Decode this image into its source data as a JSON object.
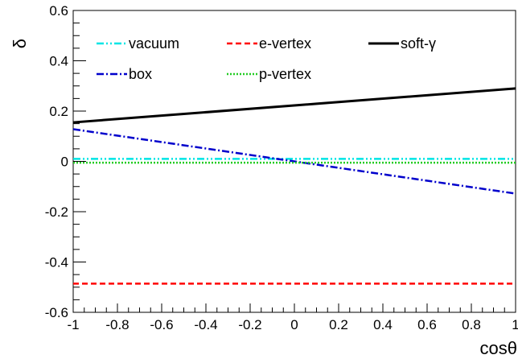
{
  "chart_data": {
    "type": "line",
    "xlabel": "cosθ",
    "ylabel": "δ",
    "xlim": [
      -1,
      1
    ],
    "ylim": [
      -0.6,
      0.6
    ],
    "x_ticks": [
      -1,
      -0.8,
      -0.6,
      -0.4,
      -0.2,
      0,
      0.2,
      0.4,
      0.6,
      0.8,
      1
    ],
    "x_tick_labels": [
      "-1",
      "-0.8",
      "-0.6",
      "-0.4",
      "-0.2",
      "0",
      "0.2",
      "0.4",
      "0.6",
      "0.8",
      "1"
    ],
    "y_ticks": [
      -0.6,
      -0.4,
      -0.2,
      0,
      0.2,
      0.4,
      0.6
    ],
    "y_tick_labels": [
      "-0.6",
      "-0.4",
      "-0.2",
      "0",
      "0.2",
      "0.4",
      "0.6"
    ],
    "grid": false,
    "legend_position": "top",
    "series": [
      {
        "name": "vacuum",
        "color": "#00e5e5",
        "style": "dash-dot-dot",
        "x": [
          -1,
          1
        ],
        "y": [
          0.01,
          0.01
        ]
      },
      {
        "name": "e-vertex",
        "color": "#ff0000",
        "style": "dashed",
        "x": [
          -1,
          1
        ],
        "y": [
          -0.486,
          -0.486
        ]
      },
      {
        "name": "soft-γ",
        "color": "#000000",
        "style": "solid",
        "x": [
          -1,
          1
        ],
        "y": [
          0.155,
          0.29
        ]
      },
      {
        "name": "box",
        "color": "#0000cc",
        "style": "dash-dot",
        "x": [
          -1,
          1
        ],
        "y": [
          0.128,
          -0.128
        ]
      },
      {
        "name": "p-vertex",
        "color": "#22cc22",
        "style": "dotted",
        "x": [
          -1,
          1
        ],
        "y": [
          -0.005,
          -0.005
        ]
      }
    ]
  }
}
